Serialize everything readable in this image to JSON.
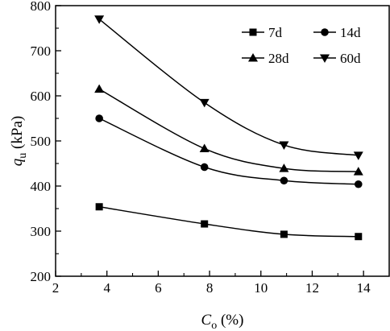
{
  "chart_data": {
    "type": "scatter",
    "xlabel": {
      "var": "C",
      "sub": "o",
      "unit": " (%)"
    },
    "ylabel": {
      "var": "q",
      "sub": "u",
      "unit": " (kPa)"
    },
    "xlim": [
      2,
      15
    ],
    "ylim": [
      200,
      800
    ],
    "xticks": [
      2,
      4,
      6,
      8,
      10,
      12,
      14
    ],
    "yticks": [
      200,
      300,
      400,
      500,
      600,
      700,
      800
    ],
    "grid": false,
    "legend_position": "top-right",
    "series": [
      {
        "name": "7d",
        "marker": "square",
        "x": [
          3.7,
          7.8,
          10.9,
          13.8
        ],
        "y": [
          354,
          316,
          293,
          288
        ]
      },
      {
        "name": "14d",
        "marker": "circle",
        "x": [
          3.7,
          7.8,
          10.9,
          13.8
        ],
        "y": [
          550,
          442,
          412,
          404
        ]
      },
      {
        "name": "28d",
        "marker": "triangle-up",
        "x": [
          3.7,
          7.8,
          10.9,
          13.8
        ],
        "y": [
          615,
          483,
          439,
          432
        ]
      },
      {
        "name": "60d",
        "marker": "triangle-down",
        "x": [
          3.7,
          7.8,
          10.9,
          13.8
        ],
        "y": [
          770,
          585,
          491,
          468
        ]
      }
    ]
  }
}
